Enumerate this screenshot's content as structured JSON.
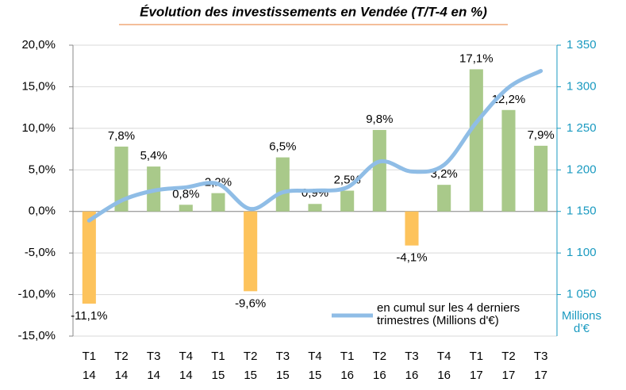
{
  "chart_data": {
    "type": "bar",
    "title": "Évolution des investissements en Vendée (T/T-4 en %)",
    "categories": [
      [
        "T1",
        "14"
      ],
      [
        "T2",
        "14"
      ],
      [
        "T3",
        "14"
      ],
      [
        "T4",
        "14"
      ],
      [
        "T1",
        "15"
      ],
      [
        "T2",
        "15"
      ],
      [
        "T3",
        "15"
      ],
      [
        "T4",
        "15"
      ],
      [
        "T1",
        "16"
      ],
      [
        "T2",
        "16"
      ],
      [
        "T3",
        "16"
      ],
      [
        "T4",
        "16"
      ],
      [
        "T1",
        "17"
      ],
      [
        "T2",
        "17"
      ],
      [
        "T3",
        "17"
      ]
    ],
    "values": [
      -11.1,
      7.8,
      5.4,
      0.8,
      2.2,
      -9.6,
      6.5,
      0.9,
      2.5,
      9.8,
      -4.1,
      3.2,
      17.1,
      12.2,
      7.9
    ],
    "value_labels": [
      "-11,1%",
      "7,8%",
      "5,4%",
      "0,8%",
      "2,2%",
      "-9,6%",
      "6,5%",
      "0,9%",
      "2,5%",
      "9,8%",
      "-4,1%",
      "3,2%",
      "17,1%",
      "12,2%",
      "7,9%"
    ],
    "colors": [
      "#fdc35c",
      "#a9c98a",
      "#a9c98a",
      "#a9c98a",
      "#a9c98a",
      "#fdc35c",
      "#a9c98a",
      "#a9c98a",
      "#a9c98a",
      "#a9c98a",
      "#fdc35c",
      "#a9c98a",
      "#a9c98a",
      "#a9c98a",
      "#a9c98a"
    ],
    "series": [
      {
        "name": "en cumul sur les 4 derniers trimestres (Millions d'€)",
        "color": "#8fbde6",
        "axis": "y2",
        "values": [
          1139,
          1163,
          1175,
          1179,
          1183,
          1153,
          1173,
          1175,
          1179,
          1210,
          1198,
          1206,
          1257,
          1299,
          1319
        ]
      }
    ],
    "ylim": [
      -15,
      20
    ],
    "yticks": [
      {
        "value": -15,
        "label": "-15,0%"
      },
      {
        "value": -10,
        "label": "-10,0%"
      },
      {
        "value": -5,
        "label": "-5,0%"
      },
      {
        "value": 0,
        "label": "0,0%"
      },
      {
        "value": 5,
        "label": "5,0%"
      },
      {
        "value": 10,
        "label": "10,0%"
      },
      {
        "value": 15,
        "label": "15,0%"
      },
      {
        "value": 20,
        "label": "20,0%"
      }
    ],
    "y2lim": [
      1000,
      1350
    ],
    "y2ticks": [
      {
        "value": 1050,
        "label": "1 050"
      },
      {
        "value": 1100,
        "label": "1 100"
      },
      {
        "value": 1150,
        "label": "1 150"
      },
      {
        "value": 1200,
        "label": "1 200"
      },
      {
        "value": 1250,
        "label": "1 250"
      },
      {
        "value": 1300,
        "label": "1 300"
      },
      {
        "value": 1350,
        "label": "1 350"
      }
    ],
    "y2label": "Millions d’€",
    "grid": true
  }
}
